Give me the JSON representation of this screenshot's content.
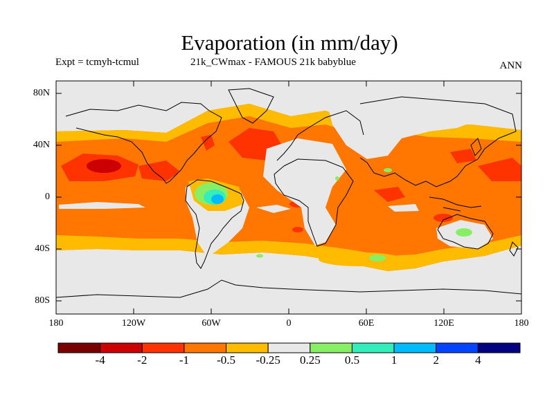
{
  "header": {
    "title": "Evaporation (in mm/day)",
    "expt": "Expt = tcmyh-tcmul",
    "run": "21k_CWmax - FAMOUS 21k babyblue",
    "season": "ANN"
  },
  "axes": {
    "y_ticks": [
      "80N",
      "40N",
      "0",
      "40S",
      "80S"
    ],
    "x_ticks": [
      "180",
      "120W",
      "60W",
      "0",
      "60E",
      "120E",
      "180"
    ]
  },
  "colorbar": {
    "colors": [
      "#7a0000",
      "#cc0000",
      "#ff3300",
      "#ff7700",
      "#ffbb00",
      "#e8e8e8",
      "#88ee66",
      "#33eebb",
      "#00bbff",
      "#0044ff",
      "#000080"
    ],
    "labels": [
      "-4",
      "-2",
      "-1",
      "-0.5",
      "-0.25",
      "0.25",
      "0.5",
      "1",
      "2",
      "4"
    ]
  }
}
